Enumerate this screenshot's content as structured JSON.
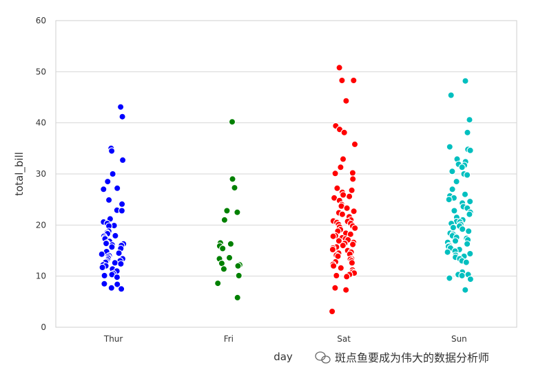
{
  "chart_data": {
    "type": "scatter",
    "xlabel": "day",
    "ylabel": "total_bill",
    "ylim": [
      0,
      60
    ],
    "yticks": [
      0,
      10,
      20,
      30,
      40,
      50,
      60
    ],
    "grid": true,
    "categories": [
      "Thur",
      "Fri",
      "Sat",
      "Sun"
    ],
    "series": [
      {
        "color": "#0000ff",
        "values": [
          43.1,
          41.2,
          35.0,
          34.5,
          32.7,
          30.0,
          28.5,
          27.2,
          27.0,
          24.9,
          24.1,
          22.9,
          22.8,
          21.2,
          20.6,
          20.3,
          19.9,
          19.8,
          18.8,
          18.5,
          18.3,
          17.9,
          17.8,
          17.5,
          17.3,
          16.8,
          16.5,
          16.4,
          16.3,
          16.1,
          16.0,
          15.7,
          15.4,
          14.8,
          14.5,
          14.3,
          14.0,
          13.8,
          13.5,
          13.4,
          13.2,
          13.0,
          12.9,
          12.7,
          12.6,
          12.4,
          12.2,
          12.0,
          11.7,
          11.4,
          11.0,
          10.5,
          10.3,
          10.1,
          9.8,
          8.5,
          8.4,
          7.7,
          7.5
        ]
      },
      {
        "color": "#008000",
        "values": [
          40.2,
          29.0,
          27.3,
          22.8,
          22.5,
          21.0,
          16.5,
          16.3,
          15.9,
          15.4,
          13.6,
          13.4,
          12.5,
          12.2,
          12.0,
          11.4,
          10.1,
          8.6,
          5.8
        ]
      },
      {
        "color": "#ff0000",
        "values": [
          50.8,
          48.3,
          48.3,
          44.3,
          39.4,
          38.7,
          38.1,
          35.8,
          32.9,
          31.3,
          30.2,
          30.1,
          29.0,
          27.2,
          26.8,
          26.4,
          25.9,
          25.6,
          25.3,
          24.8,
          24.0,
          23.7,
          23.3,
          22.7,
          22.4,
          22.1,
          21.6,
          21.0,
          20.8,
          20.7,
          20.5,
          20.3,
          20.1,
          19.8,
          19.6,
          19.4,
          19.1,
          18.8,
          18.4,
          18.2,
          18.0,
          17.9,
          17.8,
          17.5,
          17.3,
          17.1,
          16.9,
          16.6,
          16.4,
          16.2,
          16.0,
          15.7,
          15.5,
          15.2,
          15.0,
          14.7,
          14.5,
          14.3,
          14.1,
          13.9,
          13.4,
          13.3,
          13.0,
          12.8,
          12.6,
          12.3,
          12.0,
          11.6,
          11.2,
          10.8,
          10.6,
          10.3,
          10.1,
          9.9,
          7.7,
          7.3,
          3.1
        ]
      },
      {
        "color": "#00bfbf",
        "values": [
          48.2,
          45.4,
          40.6,
          38.1,
          35.3,
          34.8,
          34.6,
          32.9,
          32.4,
          31.9,
          31.7,
          31.3,
          30.5,
          30.0,
          29.8,
          28.5,
          27.0,
          26.0,
          25.7,
          25.3,
          25.0,
          24.6,
          24.3,
          23.6,
          23.3,
          22.8,
          22.5,
          22.1,
          21.5,
          21.0,
          20.7,
          20.6,
          20.3,
          20.1,
          19.8,
          19.5,
          19.2,
          18.8,
          18.4,
          18.2,
          17.9,
          17.6,
          17.4,
          17.1,
          16.9,
          16.6,
          16.3,
          16.0,
          15.8,
          15.5,
          15.2,
          14.9,
          14.7,
          14.4,
          14.1,
          13.9,
          13.7,
          13.4,
          13.0,
          12.7,
          10.8,
          10.3,
          10.3,
          10.1,
          9.6,
          9.4,
          7.3
        ]
      }
    ]
  },
  "watermark": {
    "icon": "wechat-icon",
    "text": "斑点鱼要成为伟大的数据分析师"
  }
}
